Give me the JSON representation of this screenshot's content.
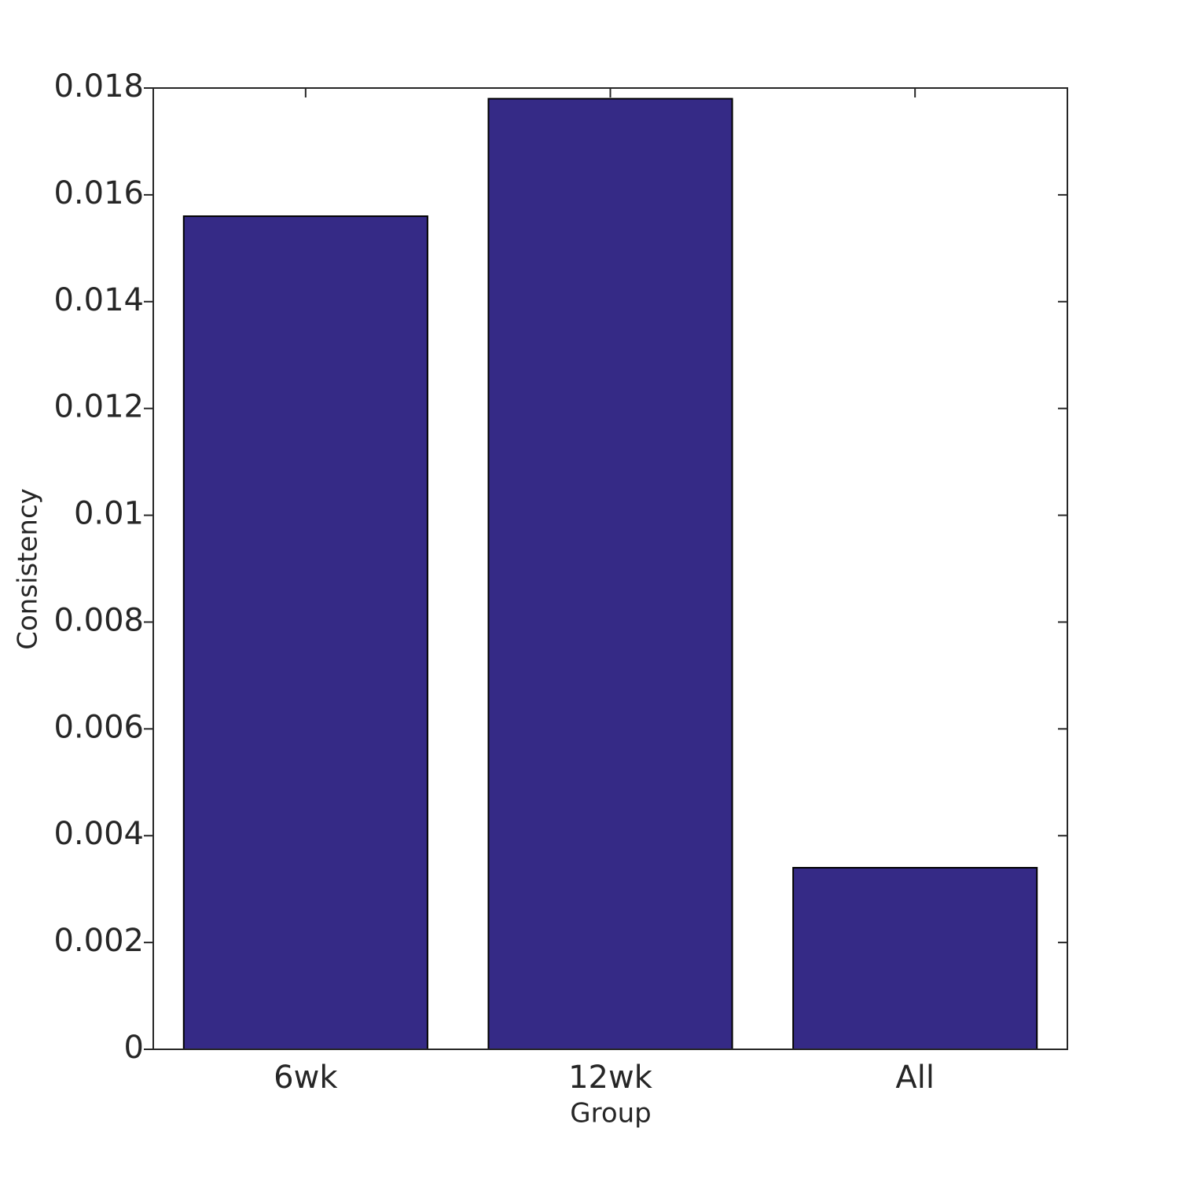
{
  "chart_data": {
    "type": "bar",
    "x_label": "Group",
    "y_label": "Consistency",
    "categories": [
      "6wk",
      "12wk",
      "All"
    ],
    "values": [
      0.0156,
      0.0178,
      0.0034
    ],
    "color": "#352a86",
    "ylim": [
      0,
      0.018
    ],
    "yticks": [
      0,
      0.002,
      0.004,
      0.006,
      0.008,
      0.01,
      0.012,
      0.014,
      0.016,
      0.018
    ],
    "grid": false
  }
}
